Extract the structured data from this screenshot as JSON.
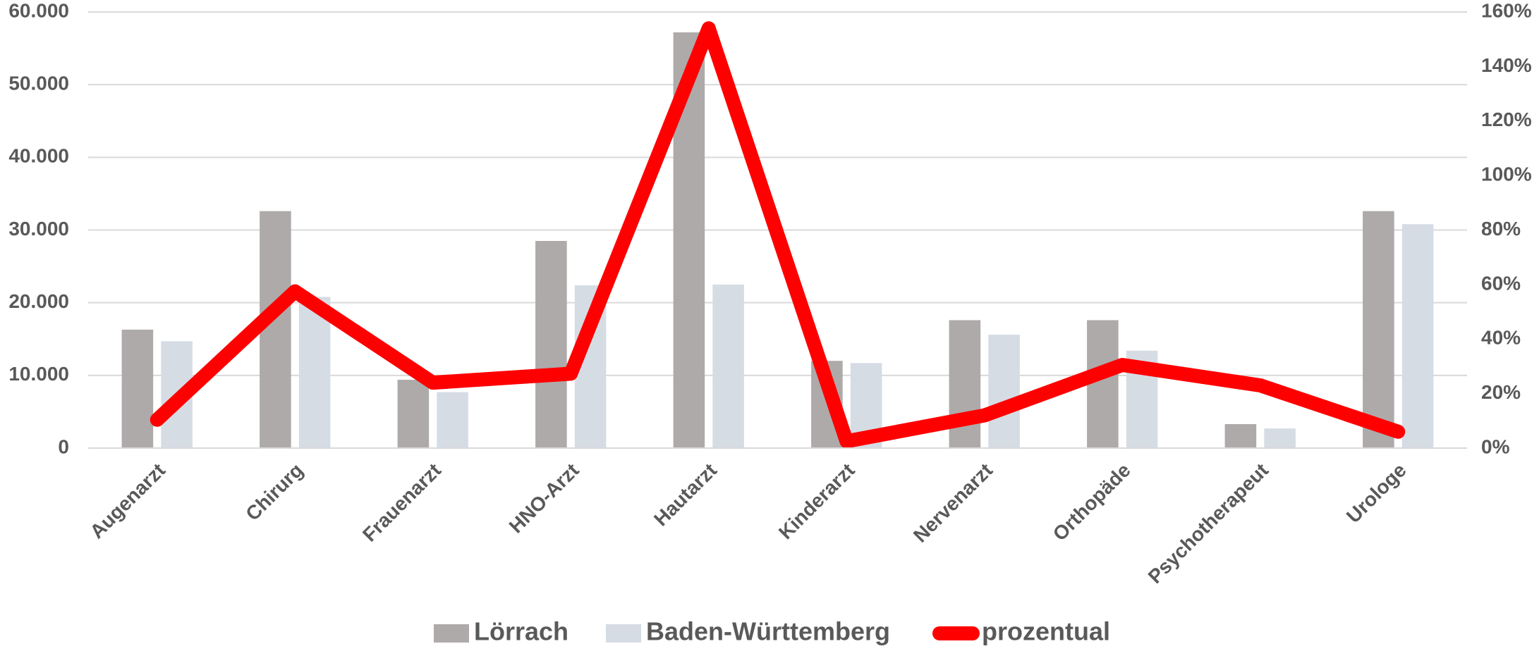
{
  "chart_data": {
    "type": "bar-line",
    "categories": [
      "Augenarzt",
      "Chirurg",
      "Frauenarzt",
      "HNO-Arzt",
      "Hautarzt",
      "Kinderarzt",
      "Nervenarzt",
      "Orthopäde",
      "Psychotherapeut",
      "Urologe"
    ],
    "series": [
      {
        "name": "Lörrach",
        "type": "bar",
        "color": "#aeaaaa",
        "values": [
          16300,
          32600,
          9400,
          28500,
          57200,
          12000,
          17600,
          17600,
          3300,
          32600
        ]
      },
      {
        "name": "Baden-Württemberg",
        "type": "bar",
        "color": "#d6dce4",
        "values": [
          14700,
          20800,
          7700,
          22400,
          22500,
          11700,
          15600,
          13400,
          2700,
          30800
        ]
      },
      {
        "name": "prozentual",
        "type": "line",
        "axis": "y2",
        "color": "#ff0000",
        "values": [
          10.4,
          57.5,
          24,
          27.3,
          154,
          2.5,
          12,
          30.5,
          23,
          6
        ]
      }
    ],
    "ylim": [
      0,
      60000
    ],
    "yticks": [
      0,
      {
        "value": 10000,
        "label": "10.000"
      },
      {
        "value": 20000,
        "label": "20.000"
      },
      {
        "value": 30000,
        "label": "30.000"
      },
      {
        "value": 40000,
        "label": "40.000"
      },
      {
        "value": 50000,
        "label": "50.000"
      },
      {
        "value": 60000,
        "label": "60.000"
      }
    ],
    "y2lim": [
      0,
      160
    ],
    "y2ticks": [
      {
        "value": 0,
        "label": "0%"
      },
      {
        "value": 20,
        "label": "20%"
      },
      {
        "value": 40,
        "label": "40%"
      },
      {
        "value": 60,
        "label": "60%"
      },
      {
        "value": 80,
        "label": "80%"
      },
      {
        "value": 100,
        "label": "100%"
      },
      {
        "value": 120,
        "label": "120%"
      },
      {
        "value": 140,
        "label": "140%"
      },
      {
        "value": 160,
        "label": "160%"
      }
    ],
    "grid": true,
    "legend": "bottom"
  }
}
